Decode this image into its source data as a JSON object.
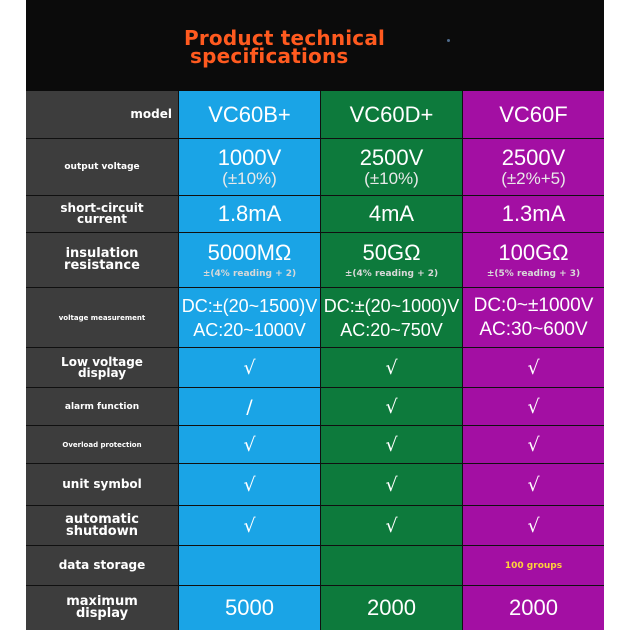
{
  "title": {
    "line1": "Product technical",
    "line2": "specifications"
  },
  "columns": {
    "c1": "#1aa4e6",
    "c2": "#0d7a3c",
    "c3": "#a30fa3"
  },
  "rows": [
    {
      "label": "model",
      "v1": "VC60B+",
      "v2": "VC60D+",
      "v3": "VC60F"
    },
    {
      "label": "output voltage",
      "v1": "1000V",
      "s1": "(±10%)",
      "v2": "2500V",
      "s2": "(±10%)",
      "v3": "2500V",
      "s3": "(±2%+5)"
    },
    {
      "label_l1": "short-circuit",
      "label_l2": "current",
      "v1": "1.8mA",
      "v2": "4mA",
      "v3": "1.3mA"
    },
    {
      "label_l1": "insulation",
      "label_l2": "resistance",
      "v1": "5000MΩ",
      "s1": "±(4% reading + 2)",
      "v2": "50GΩ",
      "s2": "±(4% reading + 2)",
      "v3": "100GΩ",
      "s3": "±(5% reading + 3)"
    },
    {
      "label": "voltage measurement",
      "v1a": "DC:±(20~1500)V",
      "v1b": "AC:20~1000V",
      "v2a": "DC:±(20~1000)V",
      "v2b": "AC:20~750V",
      "v3a": "DC:0~±1000V",
      "v3b": "AC:30~600V"
    },
    {
      "label_l1": "Low voltage",
      "label_l2": "display",
      "v1": "√",
      "v2": "√",
      "v3": "√"
    },
    {
      "label": "alarm function",
      "v1": "/",
      "v2": "√",
      "v3": "√"
    },
    {
      "label": "Overload protection",
      "v1": "√",
      "v2": "√",
      "v3": "√"
    },
    {
      "label": "unit symbol",
      "v1": "√",
      "v2": "√",
      "v3": "√"
    },
    {
      "label_l1": "automatic",
      "label_l2": "shutdown",
      "v1": "√",
      "v2": "√",
      "v3": "√"
    },
    {
      "label": "data storage",
      "v1": "",
      "v2": "",
      "v3": "100 groups"
    },
    {
      "label_l1": "maximum",
      "label_l2": "display",
      "v1": "5000",
      "v2": "2000",
      "v3": "2000"
    }
  ]
}
